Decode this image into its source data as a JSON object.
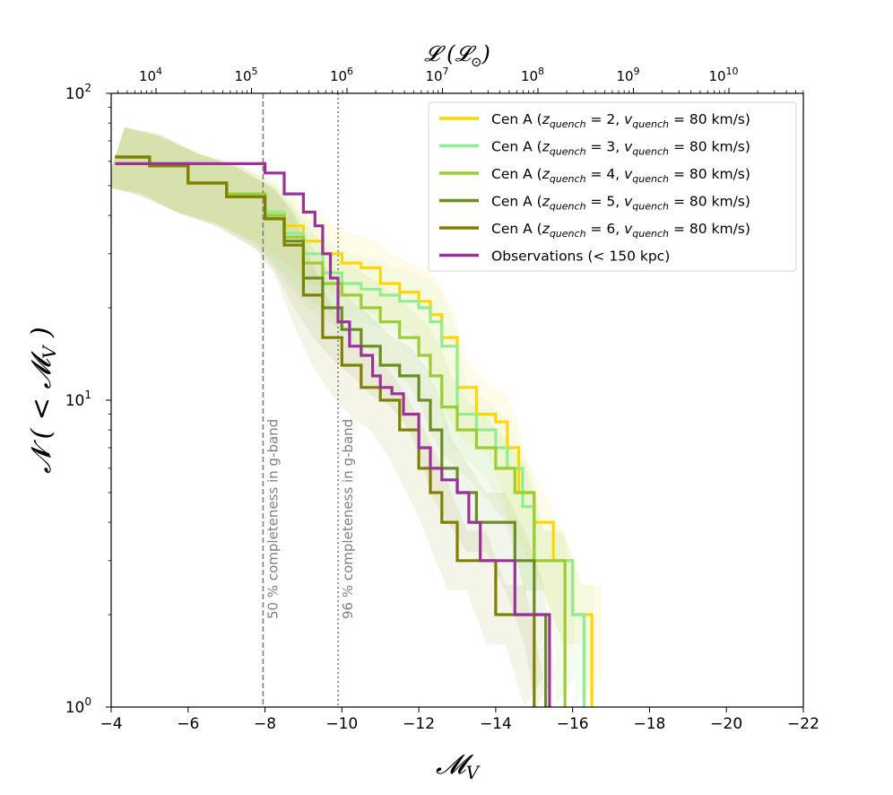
{
  "chart_data": {
    "type": "line",
    "x_axis": {
      "label": "𝓜",
      "label_sub": "V",
      "xlim": [
        -4,
        -22
      ],
      "ticks": [
        -4,
        -6,
        -8,
        -10,
        -12,
        -14,
        -16,
        -18,
        -20,
        -22
      ],
      "tick_labels": [
        "−4",
        "−6",
        "−8",
        "−10",
        "−12",
        "−14",
        "−16",
        "−18",
        "−20",
        "−22"
      ]
    },
    "y_axis": {
      "label": "𝓝 ( < 𝓜",
      "label_sub": "V",
      "label_close": " )",
      "scale": "log",
      "ylim": [
        1,
        100
      ],
      "ticks": [
        {
          "value": 1,
          "mantissa": "10",
          "exponent": "0"
        },
        {
          "value": 10,
          "mantissa": "10",
          "exponent": "1"
        },
        {
          "value": 100,
          "mantissa": "10",
          "exponent": "2"
        }
      ]
    },
    "top_axis": {
      "label": "𝓛 (𝓛",
      "label_sub": "⊙",
      "label_close": ")",
      "ticks": [
        {
          "exp": 4,
          "mantissa": "10",
          "exponent": "4"
        },
        {
          "exp": 5,
          "mantissa": "10",
          "exponent": "5"
        },
        {
          "exp": 6,
          "mantissa": "10",
          "exponent": "6"
        },
        {
          "exp": 7,
          "mantissa": "10",
          "exponent": "7"
        },
        {
          "exp": 8,
          "mantissa": "10",
          "exponent": "8"
        },
        {
          "exp": 9,
          "mantissa": "10",
          "exponent": "9"
        },
        {
          "exp": 10,
          "mantissa": "10",
          "exponent": "10"
        }
      ]
    },
    "vertical_lines": [
      {
        "x": -7.95,
        "style": "dashed",
        "label": "50 % completeness in g-band",
        "color": "#808080"
      },
      {
        "x": -9.9,
        "style": "dotted",
        "label": "96 % completeness in g-band",
        "color": "#808080"
      }
    ],
    "series": [
      {
        "name": "Cen A (",
        "z": "2",
        "color": "#ffd700",
        "points": [
          [
            -4.1,
            62
          ],
          [
            -5,
            59
          ],
          [
            -6,
            51
          ],
          [
            -7,
            47
          ],
          [
            -8,
            41
          ],
          [
            -8.5,
            37
          ],
          [
            -9,
            33
          ],
          [
            -9.5,
            30
          ],
          [
            -10,
            28
          ],
          [
            -10.5,
            27
          ],
          [
            -11,
            24
          ],
          [
            -11.5,
            22.5
          ],
          [
            -12,
            21
          ],
          [
            -12.3,
            19
          ],
          [
            -12.6,
            16
          ],
          [
            -13,
            11
          ],
          [
            -13.5,
            9
          ],
          [
            -14,
            8.5
          ],
          [
            -14.3,
            7
          ],
          [
            -14.6,
            5
          ],
          [
            -15,
            4
          ],
          [
            -15.5,
            3
          ],
          [
            -16,
            2
          ],
          [
            -16.5,
            2
          ],
          [
            -16.5,
            1
          ]
        ]
      },
      {
        "name": "Cen A (",
        "z": "3",
        "color": "#90ee90",
        "points": [
          [
            -4.1,
            62
          ],
          [
            -5,
            59
          ],
          [
            -6,
            51
          ],
          [
            -7,
            47
          ],
          [
            -8,
            41
          ],
          [
            -8.5,
            35
          ],
          [
            -9,
            30
          ],
          [
            -9.5,
            26
          ],
          [
            -10,
            24
          ],
          [
            -10.5,
            23
          ],
          [
            -11,
            22
          ],
          [
            -11.5,
            21
          ],
          [
            -12,
            20
          ],
          [
            -12.3,
            18
          ],
          [
            -12.6,
            15
          ],
          [
            -13,
            9
          ],
          [
            -13.5,
            8
          ],
          [
            -14,
            7
          ],
          [
            -14.3,
            6
          ],
          [
            -14.7,
            4.5
          ],
          [
            -15,
            3
          ],
          [
            -15.5,
            3
          ],
          [
            -16,
            2
          ],
          [
            -16.3,
            2
          ],
          [
            -16.3,
            1
          ]
        ]
      },
      {
        "name": "Cen A (",
        "z": "4",
        "color": "#9acd32",
        "points": [
          [
            -4.1,
            62
          ],
          [
            -5,
            59
          ],
          [
            -6,
            51
          ],
          [
            -7,
            47
          ],
          [
            -8,
            40
          ],
          [
            -8.5,
            34
          ],
          [
            -9,
            28
          ],
          [
            -9.5,
            24
          ],
          [
            -10,
            22
          ],
          [
            -10.5,
            20
          ],
          [
            -11,
            18
          ],
          [
            -11.5,
            16
          ],
          [
            -12,
            14
          ],
          [
            -12.3,
            12
          ],
          [
            -12.6,
            9.5
          ],
          [
            -13,
            8
          ],
          [
            -13.5,
            7
          ],
          [
            -14,
            6
          ],
          [
            -14.5,
            5
          ],
          [
            -15,
            3
          ],
          [
            -15.5,
            3
          ],
          [
            -15.8,
            2
          ],
          [
            -15.8,
            1
          ]
        ]
      },
      {
        "name": "Cen A (",
        "z": "5",
        "color": "#6b8e23",
        "points": [
          [
            -4.1,
            62
          ],
          [
            -5,
            58
          ],
          [
            -6,
            51
          ],
          [
            -7,
            46
          ],
          [
            -8,
            39
          ],
          [
            -8.5,
            33
          ],
          [
            -9,
            25
          ],
          [
            -9.5,
            20
          ],
          [
            -10,
            17
          ],
          [
            -10.5,
            15
          ],
          [
            -11,
            13
          ],
          [
            -11.5,
            12
          ],
          [
            -12,
            10
          ],
          [
            -12.3,
            8
          ],
          [
            -12.6,
            6
          ],
          [
            -13,
            5
          ],
          [
            -13.5,
            4
          ],
          [
            -14,
            4
          ],
          [
            -14.5,
            3
          ],
          [
            -15,
            2
          ],
          [
            -15.3,
            1
          ]
        ]
      },
      {
        "name": "Cen A (",
        "z": "6",
        "color": "#808000",
        "points": [
          [
            -4.1,
            62
          ],
          [
            -5,
            58
          ],
          [
            -6,
            51
          ],
          [
            -7,
            46
          ],
          [
            -8,
            39
          ],
          [
            -8.5,
            32
          ],
          [
            -9,
            22
          ],
          [
            -9.5,
            16
          ],
          [
            -10,
            13
          ],
          [
            -10.5,
            11
          ],
          [
            -11,
            10
          ],
          [
            -11.5,
            8
          ],
          [
            -12,
            6
          ],
          [
            -12.3,
            5
          ],
          [
            -12.6,
            4
          ],
          [
            -13,
            3
          ],
          [
            -13.5,
            3
          ],
          [
            -14,
            2
          ],
          [
            -14.5,
            2
          ],
          [
            -15,
            1
          ]
        ]
      },
      {
        "name": "Observations (< 150 kpc)",
        "z": "",
        "color": "#993399",
        "points": [
          [
            -4.1,
            59
          ],
          [
            -7.8,
            59
          ],
          [
            -8,
            55
          ],
          [
            -8.5,
            47
          ],
          [
            -9,
            41
          ],
          [
            -9.3,
            37
          ],
          [
            -9.5,
            30
          ],
          [
            -9.7,
            25
          ],
          [
            -9.9,
            18
          ],
          [
            -10.2,
            15
          ],
          [
            -10.5,
            14
          ],
          [
            -10.8,
            12
          ],
          [
            -11,
            11
          ],
          [
            -11.3,
            10.5
          ],
          [
            -11.6,
            9
          ],
          [
            -12,
            7
          ],
          [
            -12.3,
            6
          ],
          [
            -12.6,
            5.5
          ],
          [
            -13,
            5
          ],
          [
            -13.3,
            4
          ],
          [
            -13.6,
            3
          ],
          [
            -14,
            3
          ],
          [
            -14.5,
            2
          ],
          [
            -15,
            2
          ],
          [
            -15.4,
            2
          ],
          [
            -15.4,
            1
          ]
        ]
      }
    ],
    "legend": {
      "position": "upper right",
      "v_label": "80 km/s",
      "items": [
        {
          "label": "Cen A (",
          "z": "2",
          "v": "80",
          "unit": "km/s"
        },
        {
          "label": "Cen A (",
          "z": "3",
          "v": "80",
          "unit": "km/s"
        },
        {
          "label": "Cen A (",
          "z": "4",
          "v": "80",
          "unit": "km/s"
        },
        {
          "label": "Cen A (",
          "z": "5",
          "v": "80",
          "unit": "km/s"
        },
        {
          "label": "Cen A (",
          "z": "6",
          "v": "80",
          "unit": "km/s"
        },
        {
          "label": "Observations (< 150 kpc)"
        }
      ]
    }
  }
}
